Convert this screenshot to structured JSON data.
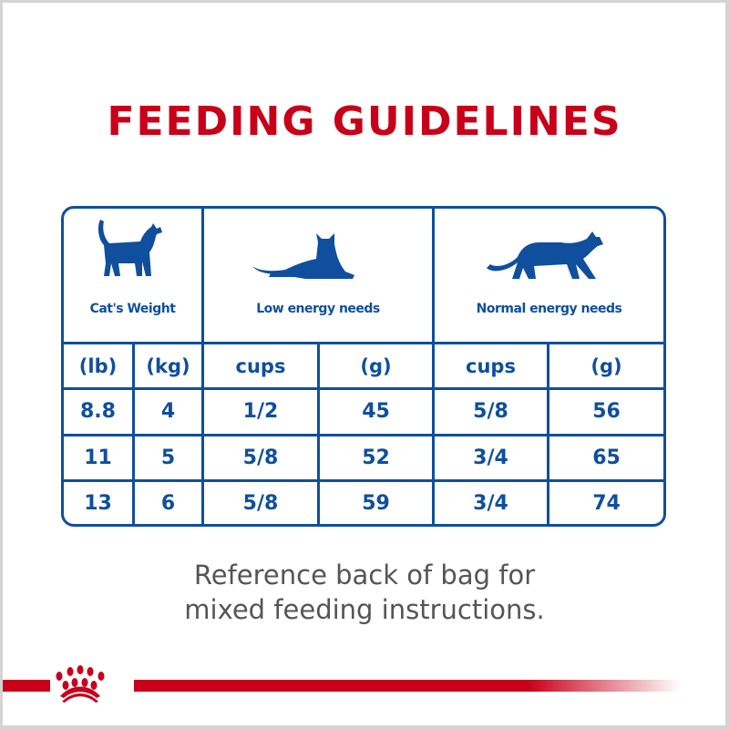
{
  "title": "FEEDING GUIDELINES",
  "headers": {
    "weight": "Cat's Weight",
    "low": "Low energy needs",
    "normal": "Normal energy needs"
  },
  "units": [
    "(lb)",
    "(kg)",
    "cups",
    "(g)",
    "cups",
    "(g)"
  ],
  "rows": [
    [
      "8.8",
      "4",
      "1/2",
      "45",
      "5/8",
      "56"
    ],
    [
      "11",
      "5",
      "5/8",
      "52",
      "3/4",
      "65"
    ],
    [
      "13",
      "6",
      "5/8",
      "59",
      "3/4",
      "74"
    ]
  ],
  "note": [
    "Reference back of bag for",
    "mixed feeding instructions."
  ],
  "colors": {
    "brand_red": "#c8001a",
    "table_blue": "#0f4f9d",
    "note_gray": "#555555"
  },
  "icons": [
    "cat-standing-icon",
    "cat-lying-icon",
    "cat-walking-icon",
    "royal-canin-crown-logo"
  ]
}
